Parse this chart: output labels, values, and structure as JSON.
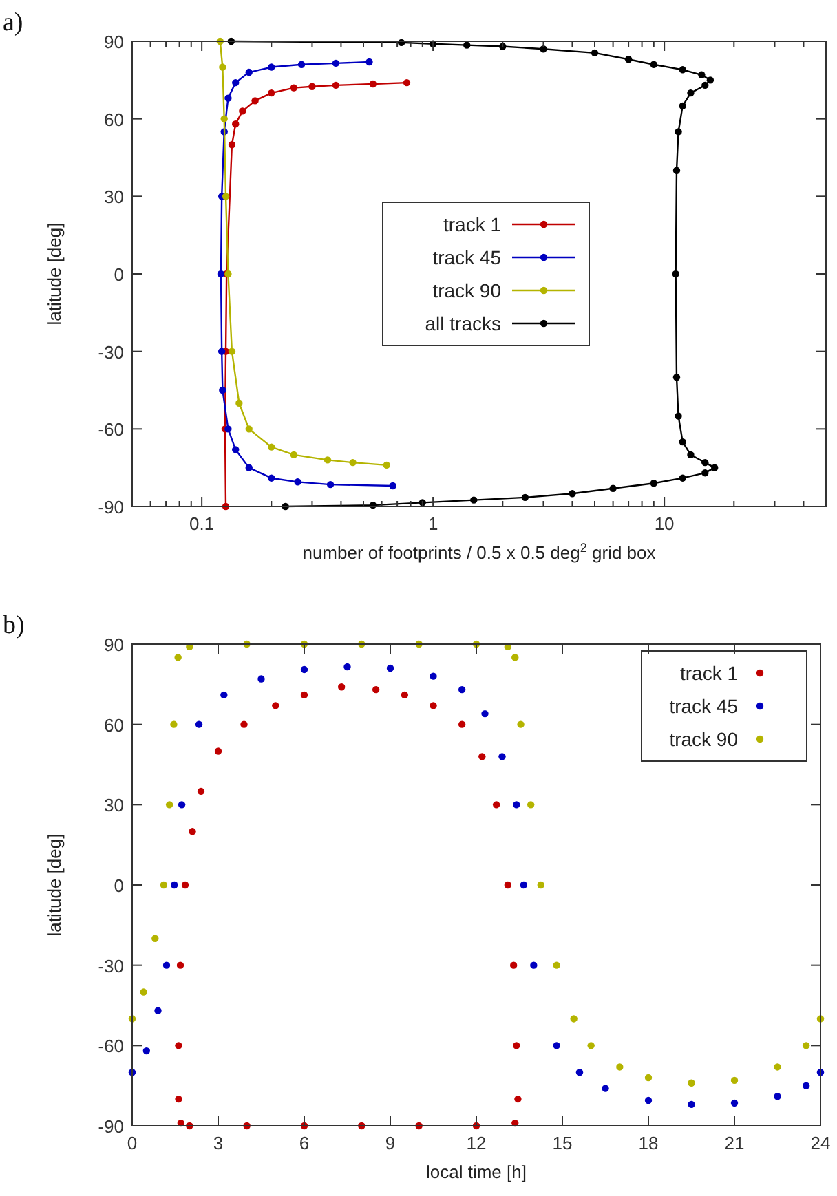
{
  "chart_data": [
    {
      "type": "line",
      "xlabel": "number of footprints / 0.5 x 0.5 deg$^{2}$ grid box",
      "ylabel": "latitude [deg]",
      "annotations": [
        "a)"
      ],
      "log": "x",
      "xlim": [
        0.05,
        50
      ],
      "ylim": [
        -90,
        90
      ],
      "xticks": [
        {
          "value": 0.05,
          "label": null
        },
        {
          "value": 0.06,
          "label": null
        },
        {
          "value": 0.07,
          "label": null
        },
        {
          "value": 0.08,
          "label": null
        },
        {
          "value": 0.09,
          "label": null
        },
        0.1,
        {
          "value": 0.2,
          "label": null
        },
        {
          "value": 0.3,
          "label": null
        },
        {
          "value": 0.4,
          "label": null
        },
        {
          "value": 0.5,
          "label": null
        },
        {
          "value": 0.6,
          "label": null
        },
        {
          "value": 0.7,
          "label": null
        },
        {
          "value": 0.8,
          "label": null
        },
        {
          "value": 0.9,
          "label": null
        },
        1,
        {
          "value": 2,
          "label": null
        },
        {
          "value": 3,
          "label": null
        },
        {
          "value": 4,
          "label": null
        },
        {
          "value": 5,
          "label": null
        },
        {
          "value": 6,
          "label": null
        },
        {
          "value": 7,
          "label": null
        },
        {
          "value": 8,
          "label": null
        },
        {
          "value": 9,
          "label": null
        },
        10,
        {
          "value": 20,
          "label": null
        },
        {
          "value": 30,
          "label": null
        },
        {
          "value": 40,
          "label": null
        }
      ],
      "yticks": [
        -90,
        -60,
        -30,
        0,
        30,
        60,
        90
      ],
      "marker": "circle",
      "legend": "center",
      "grid": false,
      "series": [
        {
          "name": "track 1",
          "color": "#c00000",
          "x": [
            0.77,
            0.55,
            0.38,
            0.3,
            0.25,
            0.2,
            0.17,
            0.15,
            0.14,
            0.135,
            0.128,
            0.127,
            0.126,
            0.127
          ],
          "values": [
            74,
            73.5,
            73,
            72.5,
            72,
            70,
            67,
            63,
            58,
            50,
            0,
            -30,
            -60,
            -90
          ]
        },
        {
          "name": "track 45",
          "color": "#0000c0",
          "x": [
            0.53,
            0.38,
            0.27,
            0.2,
            0.16,
            0.14,
            0.13,
            0.125,
            0.122,
            0.121,
            0.122,
            0.123,
            0.13,
            0.14,
            0.16,
            0.2,
            0.26,
            0.36,
            0.67
          ],
          "values": [
            82,
            81.5,
            81,
            80,
            78,
            74,
            68,
            55,
            30,
            0,
            -30,
            -45,
            -60,
            -68,
            -75,
            -79,
            -80.5,
            -81.5,
            -82
          ]
        },
        {
          "name": "track 90",
          "color": "#b4b400",
          "x": [
            0.12,
            0.123,
            0.125,
            0.127,
            0.13,
            0.135,
            0.145,
            0.16,
            0.2,
            0.25,
            0.35,
            0.45,
            0.63
          ],
          "values": [
            90,
            80,
            60,
            30,
            0,
            -30,
            -50,
            -60,
            -67,
            -70,
            -72,
            -73,
            -74
          ]
        },
        {
          "name": "all tracks",
          "color": "#000000",
          "x": [
            0.134,
            0.73,
            1.0,
            1.4,
            2,
            3,
            5,
            7,
            9,
            12,
            14.5,
            15.8,
            15,
            13,
            12,
            11.5,
            11.3,
            11.2,
            11.3,
            11.5,
            12,
            13,
            15,
            16.5,
            15,
            12,
            9,
            6,
            4,
            2.5,
            1.5,
            0.9,
            0.55,
            0.23
          ],
          "values": [
            90,
            89.5,
            89,
            88.5,
            88,
            87,
            85.5,
            83,
            81,
            79,
            77,
            75,
            73,
            70,
            65,
            55,
            40,
            0,
            -40,
            -55,
            -65,
            -70,
            -73,
            -75,
            -77,
            -79,
            -81,
            -83,
            -85,
            -86.5,
            -87.5,
            -88.5,
            -89.5,
            -90
          ]
        }
      ]
    },
    {
      "type": "scatter",
      "xlabel": "local time [h]",
      "ylabel": "latitude [deg]",
      "annotations": [
        "b)"
      ],
      "xlim": [
        0,
        24
      ],
      "ylim": [
        -90,
        90
      ],
      "xticks": [
        0,
        3,
        6,
        9,
        12,
        15,
        18,
        21,
        24
      ],
      "yticks": [
        -90,
        -60,
        -30,
        0,
        30,
        60,
        90
      ],
      "marker": "circle",
      "legend": "top right",
      "grid": false,
      "series": [
        {
          "name": "track 1",
          "color": "#c00000",
          "x": [
            1.7,
            1.62,
            1.62,
            1.68,
            1.85,
            2.1,
            2.4,
            3,
            3.9,
            5,
            6,
            7.3,
            8.5,
            9.5,
            10.5,
            11.5,
            12.2,
            12.7,
            13.1,
            13.3,
            13.4,
            13.45,
            13.35,
            12,
            10,
            8,
            6,
            4,
            2
          ],
          "values": [
            -89,
            -80,
            -60,
            -30,
            0,
            20,
            35,
            50,
            60,
            67,
            71,
            74,
            73,
            71,
            67,
            60,
            48,
            30,
            0,
            -30,
            -60,
            -80,
            -89,
            -90,
            -90,
            -90,
            -90,
            -90,
            -90
          ]
        },
        {
          "name": "track 45",
          "color": "#0000c0",
          "x": [
            0,
            0.5,
            0.9,
            1.2,
            1.47,
            1.73,
            2.33,
            3.2,
            4.5,
            6,
            7.5,
            9,
            10.5,
            11.5,
            12.3,
            12.9,
            13.4,
            13.65,
            14,
            14.8,
            15.6,
            16.5,
            18,
            19.5,
            21,
            22.5,
            23.5,
            24
          ],
          "values": [
            -70,
            -62,
            -47,
            -30,
            0,
            30,
            60,
            71,
            77,
            80.5,
            81.5,
            81,
            78,
            73,
            64,
            48,
            30,
            0,
            -30,
            -60,
            -70,
            -76,
            -80.5,
            -82,
            -81.5,
            -79,
            -75,
            -70
          ]
        },
        {
          "name": "track 90",
          "color": "#b4b400",
          "x": [
            0,
            0.4,
            0.8,
            1.1,
            1.3,
            1.45,
            1.6,
            2,
            4,
            6,
            8,
            10,
            12,
            13.1,
            13.35,
            13.55,
            13.9,
            14.25,
            14.8,
            15.4,
            16,
            17,
            18,
            19.5,
            21,
            22.5,
            23.5,
            24
          ],
          "values": [
            -50,
            -40,
            -20,
            0,
            30,
            60,
            85,
            89,
            90,
            90,
            90,
            90,
            90,
            89,
            85,
            60,
            30,
            0,
            -30,
            -50,
            -60,
            -68,
            -72,
            -74,
            -73,
            -68,
            -60,
            -50
          ]
        }
      ]
    }
  ]
}
